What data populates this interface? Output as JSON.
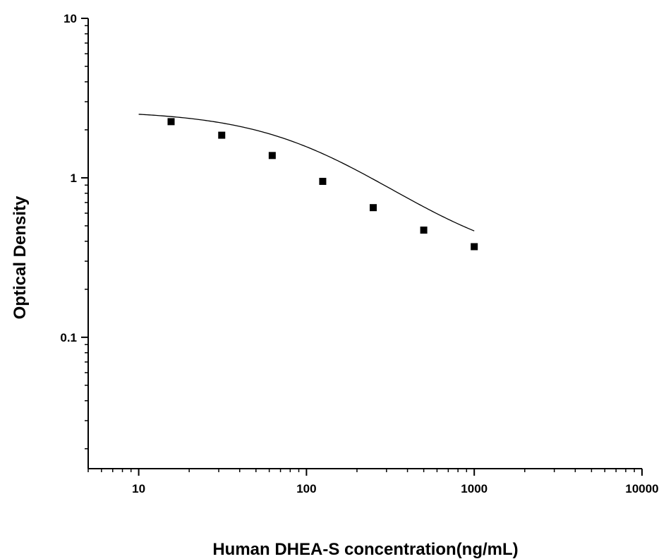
{
  "chart_data": {
    "type": "scatter",
    "title": "",
    "xlabel": "Human DHEA-S concentration(ng/mL)",
    "ylabel": "Optical Density",
    "x_scale": "log",
    "y_scale": "log",
    "xlim": [
      5,
      10000
    ],
    "ylim": [
      0.015,
      10
    ],
    "x_ticks": [
      {
        "value": 10,
        "label": "10"
      },
      {
        "value": 100,
        "label": "100"
      },
      {
        "value": 1000,
        "label": "1000"
      },
      {
        "value": 10000,
        "label": "10000"
      }
    ],
    "y_ticks": [
      {
        "value": 0.1,
        "label": "0.1"
      },
      {
        "value": 1,
        "label": "1"
      },
      {
        "value": 10,
        "label": "10"
      }
    ],
    "grid": false,
    "legend": "none",
    "marker": "square",
    "color": "#000000",
    "series": [
      {
        "x": [
          15.6,
          31.25,
          62.5,
          125,
          250,
          500,
          1000
        ],
        "y": [
          2.25,
          1.85,
          1.38,
          0.95,
          0.65,
          0.47,
          0.37
        ]
      }
    ],
    "fit_curve": {
      "type": "4PL",
      "x_range": [
        10,
        1000
      ],
      "A": 2.64,
      "B": 1.13,
      "C": 118,
      "D": 0.27
    }
  }
}
